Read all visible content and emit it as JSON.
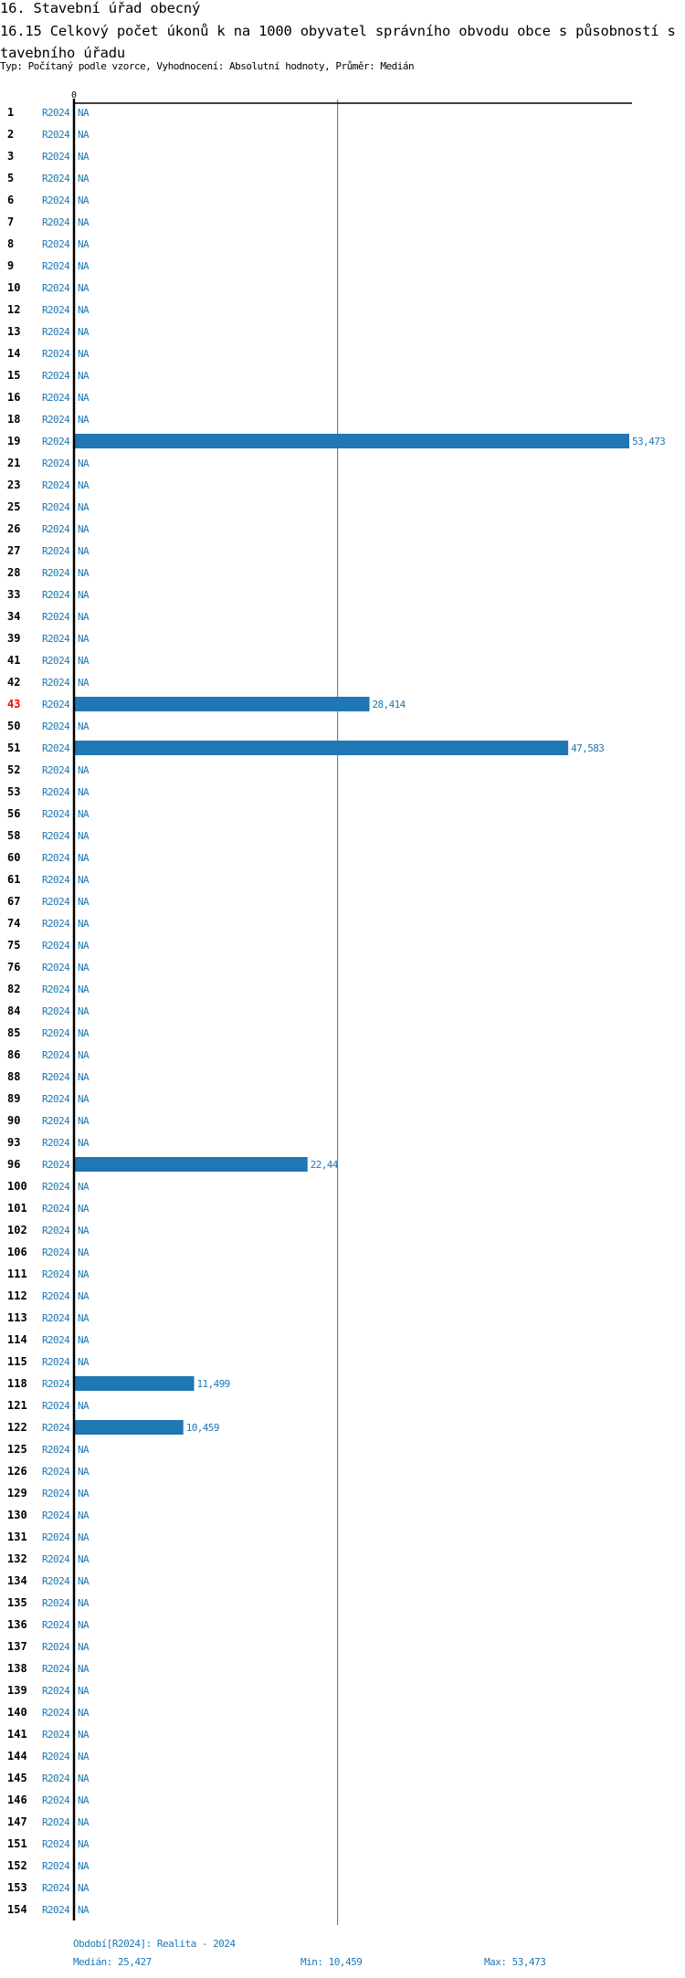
{
  "header": {
    "section_title": "16. Stavební úřad obecný",
    "indicator_title": "16.15 Celkový počet úkonů k na 1000 obyvatel správního obvodu obce s působností s tavebního úřadu",
    "subtitle": "Typ: Počítaný podle vzorce, Vyhodnocení: Absolutní hodnoty, Průměr: Medián"
  },
  "colors": {
    "bar": "#1f77b4",
    "highlight": "#ff0000",
    "axis": "#000000"
  },
  "chart_data": {
    "type": "bar",
    "orientation": "horizontal",
    "x_tick_label": "0",
    "xlim": [
      0,
      53.473
    ],
    "median": 25.427,
    "highlight_category": "43",
    "na_label": "NA",
    "period_label": "R2024",
    "rows": [
      {
        "id": "1",
        "value": null
      },
      {
        "id": "2",
        "value": null
      },
      {
        "id": "3",
        "value": null
      },
      {
        "id": "5",
        "value": null
      },
      {
        "id": "6",
        "value": null
      },
      {
        "id": "7",
        "value": null
      },
      {
        "id": "8",
        "value": null
      },
      {
        "id": "9",
        "value": null
      },
      {
        "id": "10",
        "value": null
      },
      {
        "id": "12",
        "value": null
      },
      {
        "id": "13",
        "value": null
      },
      {
        "id": "14",
        "value": null
      },
      {
        "id": "15",
        "value": null
      },
      {
        "id": "16",
        "value": null
      },
      {
        "id": "18",
        "value": null
      },
      {
        "id": "19",
        "value": 53.473,
        "label": "53,473"
      },
      {
        "id": "21",
        "value": null
      },
      {
        "id": "23",
        "value": null
      },
      {
        "id": "25",
        "value": null
      },
      {
        "id": "26",
        "value": null
      },
      {
        "id": "27",
        "value": null
      },
      {
        "id": "28",
        "value": null
      },
      {
        "id": "33",
        "value": null
      },
      {
        "id": "34",
        "value": null
      },
      {
        "id": "39",
        "value": null
      },
      {
        "id": "41",
        "value": null
      },
      {
        "id": "42",
        "value": null
      },
      {
        "id": "43",
        "value": 28.414,
        "label": "28,414"
      },
      {
        "id": "50",
        "value": null
      },
      {
        "id": "51",
        "value": 47.583,
        "label": "47,583"
      },
      {
        "id": "52",
        "value": null
      },
      {
        "id": "53",
        "value": null
      },
      {
        "id": "56",
        "value": null
      },
      {
        "id": "58",
        "value": null
      },
      {
        "id": "60",
        "value": null
      },
      {
        "id": "61",
        "value": null
      },
      {
        "id": "67",
        "value": null
      },
      {
        "id": "74",
        "value": null
      },
      {
        "id": "75",
        "value": null
      },
      {
        "id": "76",
        "value": null
      },
      {
        "id": "82",
        "value": null
      },
      {
        "id": "84",
        "value": null
      },
      {
        "id": "85",
        "value": null
      },
      {
        "id": "86",
        "value": null
      },
      {
        "id": "88",
        "value": null
      },
      {
        "id": "89",
        "value": null
      },
      {
        "id": "90",
        "value": null
      },
      {
        "id": "93",
        "value": null
      },
      {
        "id": "96",
        "value": 22.44,
        "label": "22,44"
      },
      {
        "id": "100",
        "value": null
      },
      {
        "id": "101",
        "value": null
      },
      {
        "id": "102",
        "value": null
      },
      {
        "id": "106",
        "value": null
      },
      {
        "id": "111",
        "value": null
      },
      {
        "id": "112",
        "value": null
      },
      {
        "id": "113",
        "value": null
      },
      {
        "id": "114",
        "value": null
      },
      {
        "id": "115",
        "value": null
      },
      {
        "id": "118",
        "value": 11.499,
        "label": "11,499"
      },
      {
        "id": "121",
        "value": null
      },
      {
        "id": "122",
        "value": 10.459,
        "label": "10,459"
      },
      {
        "id": "125",
        "value": null
      },
      {
        "id": "126",
        "value": null
      },
      {
        "id": "129",
        "value": null
      },
      {
        "id": "130",
        "value": null
      },
      {
        "id": "131",
        "value": null
      },
      {
        "id": "132",
        "value": null
      },
      {
        "id": "134",
        "value": null
      },
      {
        "id": "135",
        "value": null
      },
      {
        "id": "136",
        "value": null
      },
      {
        "id": "137",
        "value": null
      },
      {
        "id": "138",
        "value": null
      },
      {
        "id": "139",
        "value": null
      },
      {
        "id": "140",
        "value": null
      },
      {
        "id": "141",
        "value": null
      },
      {
        "id": "144",
        "value": null
      },
      {
        "id": "145",
        "value": null
      },
      {
        "id": "146",
        "value": null
      },
      {
        "id": "147",
        "value": null
      },
      {
        "id": "151",
        "value": null
      },
      {
        "id": "152",
        "value": null
      },
      {
        "id": "153",
        "value": null
      },
      {
        "id": "154",
        "value": null
      }
    ]
  },
  "footer": {
    "period_legend": "Období[R2024]: Realita - 2024",
    "median": "Medián: 25,427",
    "min": "Min: 10,459",
    "max": "Max: 53,473"
  }
}
